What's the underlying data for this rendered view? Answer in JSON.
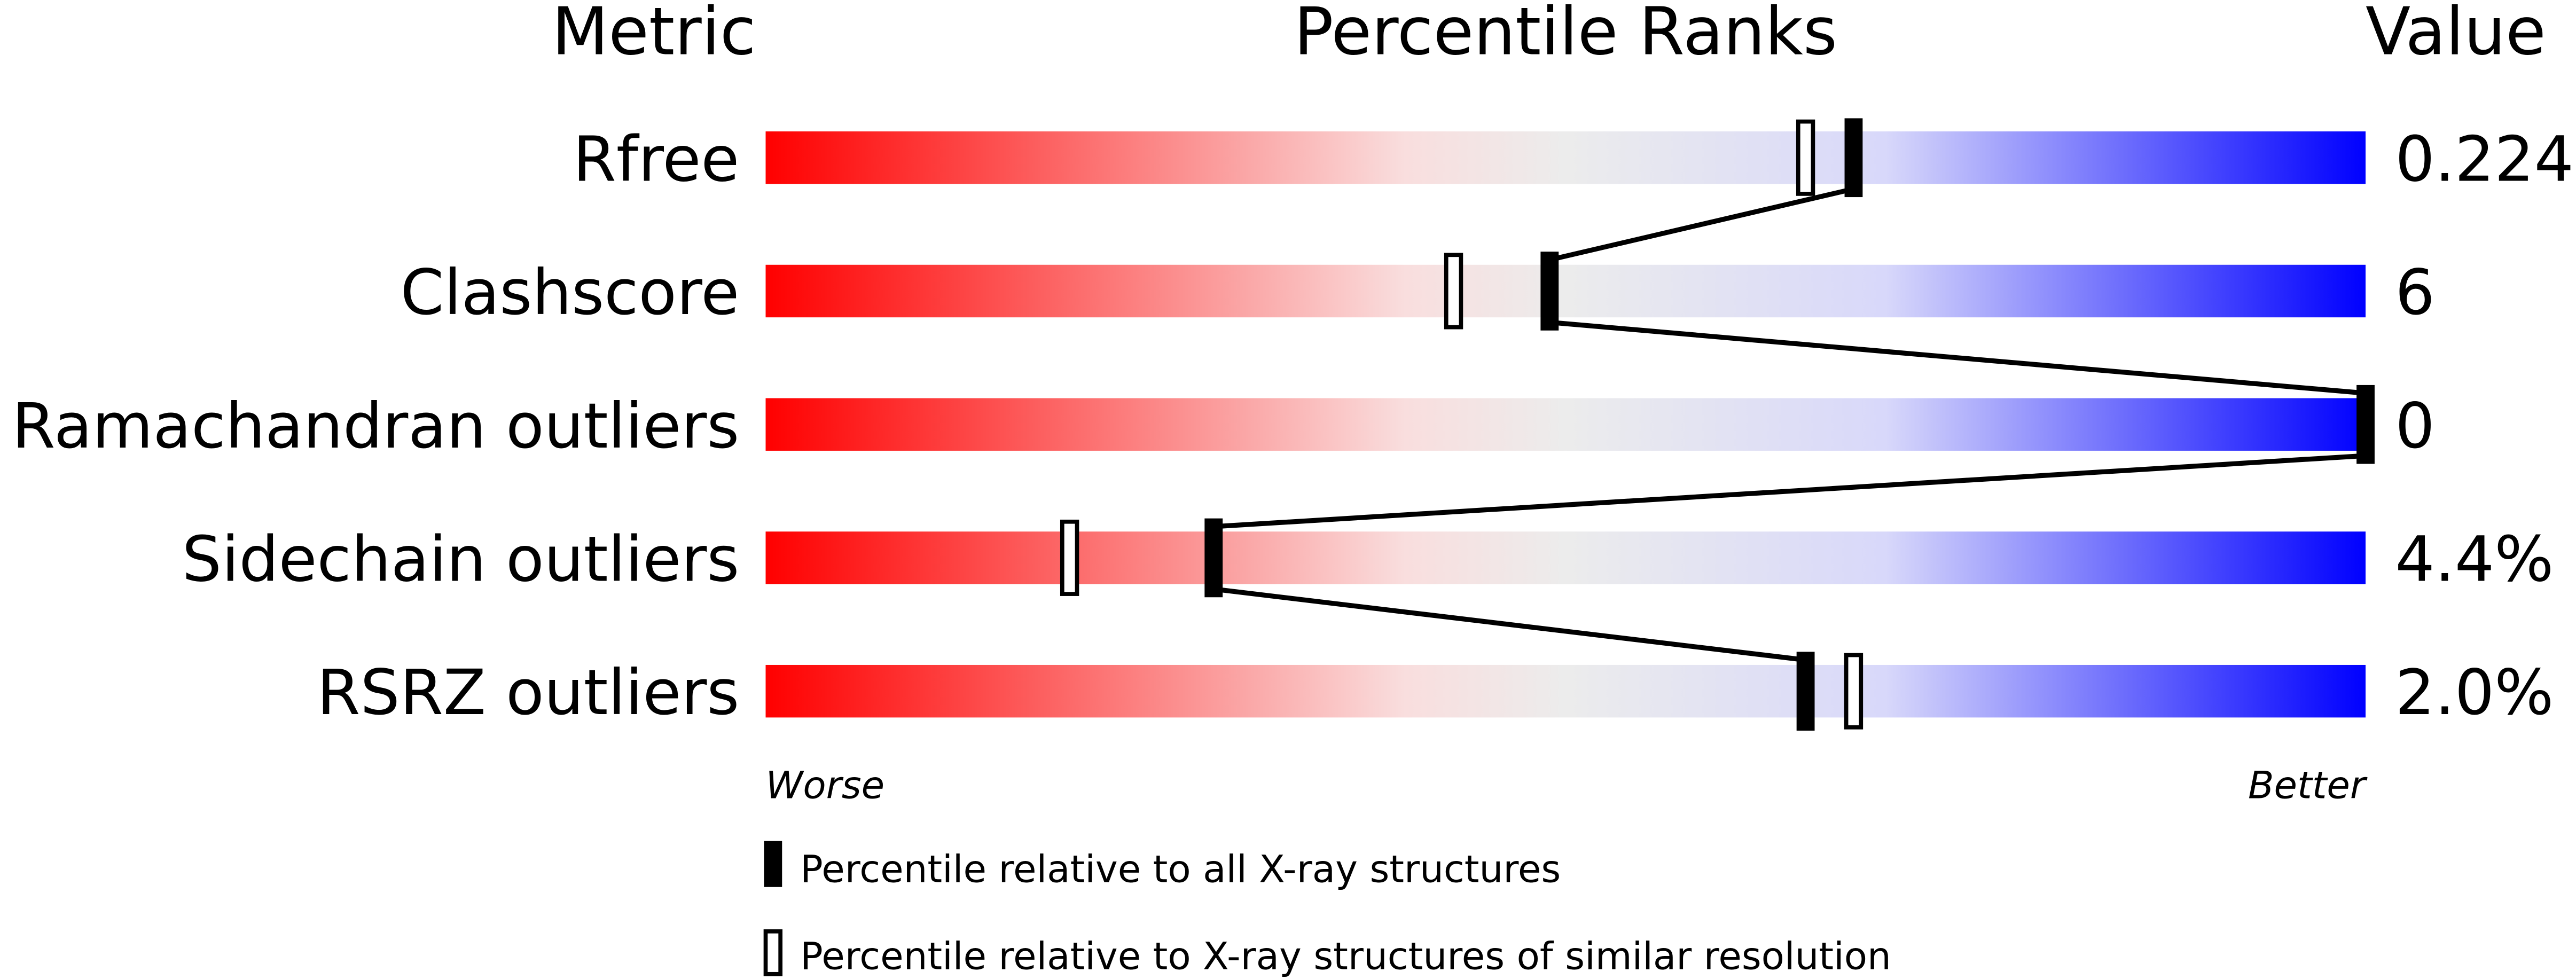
{
  "chart_data": {
    "type": "percentile-slider",
    "headers": {
      "metric": "Metric",
      "ranks": "Percentile Ranks",
      "value": "Value"
    },
    "xlim": [
      0,
      100
    ],
    "axis_labels": {
      "left": "Worse",
      "right": "Better"
    },
    "gradient_colors": [
      "#ff0000",
      "#f9dede",
      "#ececec",
      "#d8d8fa",
      "#0000ff"
    ],
    "metrics": [
      {
        "label": "Rfree",
        "value": "0.224",
        "percentile_all": 68,
        "percentile_similar": 65
      },
      {
        "label": "Clashscore",
        "value": "6",
        "percentile_all": 49,
        "percentile_similar": 43
      },
      {
        "label": "Ramachandran outliers",
        "value": "0",
        "percentile_all": 100,
        "percentile_similar": null
      },
      {
        "label": "Sidechain outliers",
        "value": "4.4%",
        "percentile_all": 28,
        "percentile_similar": 19
      },
      {
        "label": "RSRZ outliers",
        "value": "2.0%",
        "percentile_all": 65,
        "percentile_similar": 68
      }
    ],
    "legend": [
      {
        "marker": "filled",
        "label": "Percentile relative to all X-ray structures"
      },
      {
        "marker": "open",
        "label": "Percentile relative to X-ray structures of similar resolution"
      }
    ]
  }
}
